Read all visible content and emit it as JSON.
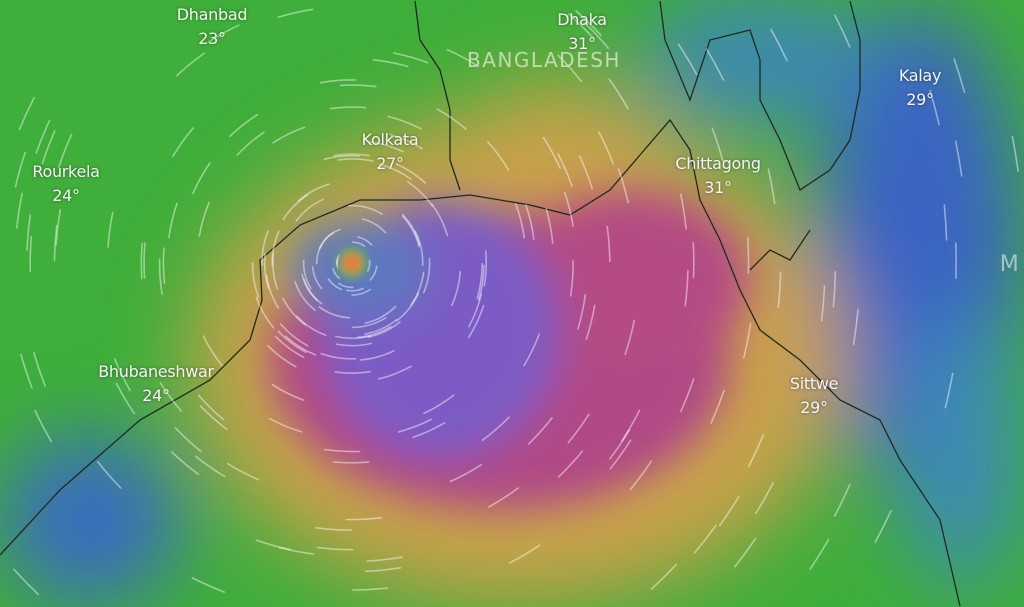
{
  "map": {
    "layer": "wind",
    "colors": {
      "calm": "#3fae3a",
      "low": "#2f7fc0",
      "moderate": "#c79a4a",
      "strong": "#b04a86",
      "severe": "#7a58c0",
      "cyclone_eye": "#ff5a3a"
    },
    "country_label": "BANGLADESH",
    "cities": [
      {
        "name": "Dhanbad",
        "temp": "23°"
      },
      {
        "name": "Dhaka",
        "temp": "31°"
      },
      {
        "name": "Kalay",
        "temp": "29°"
      },
      {
        "name": "Rourkela",
        "temp": "24°"
      },
      {
        "name": "Kolkata",
        "temp": "27°"
      },
      {
        "name": "Chittagong",
        "temp": "31°"
      },
      {
        "name": "Bhubaneshwar",
        "temp": "24°"
      },
      {
        "name": "Sittwe",
        "temp": "29°"
      }
    ],
    "edge_label": "M"
  }
}
